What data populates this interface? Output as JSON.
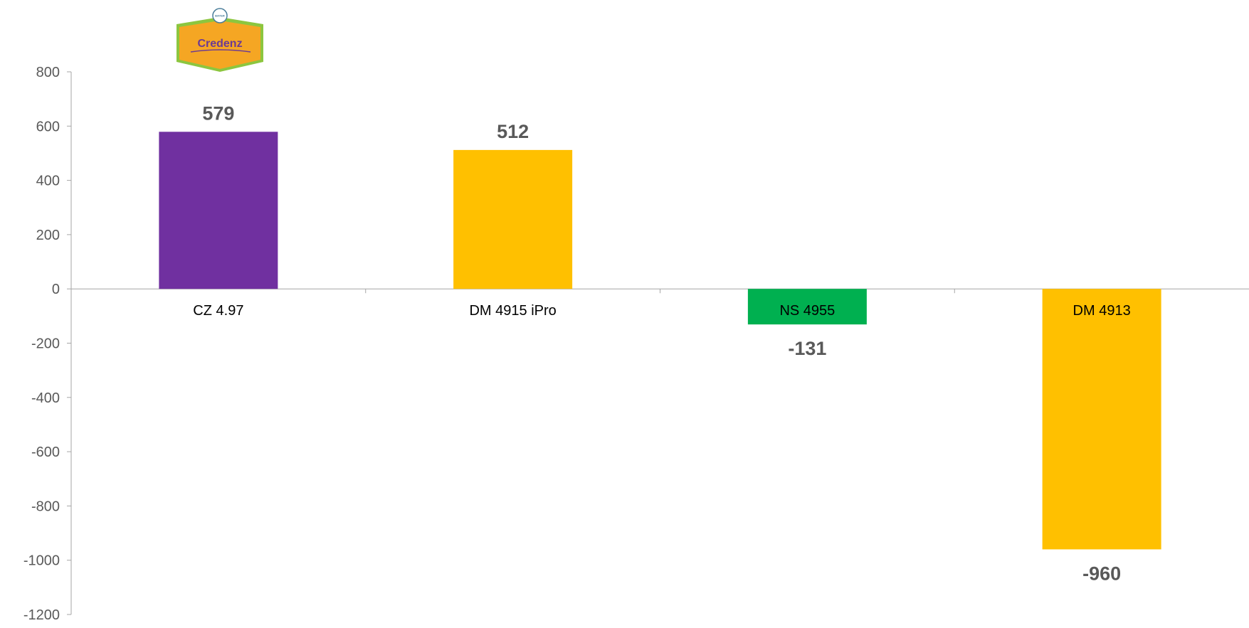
{
  "logo": {
    "brand": "Credenz",
    "company": "BAYER",
    "colors": {
      "body": "#f5a623",
      "border": "#8cc63f",
      "text": "#6b3a94",
      "seal": "#4a7d9a"
    }
  },
  "chart_data": {
    "type": "bar",
    "title": "",
    "xlabel": "",
    "ylabel": "",
    "categories": [
      "CZ 4.97",
      "DM 4915 iPro",
      "NS 4955",
      "DM 4913"
    ],
    "values": [
      579,
      512,
      -131,
      -960
    ],
    "data_labels": [
      "579",
      "512",
      "-131",
      "-960"
    ],
    "colors": [
      "#7030a0",
      "#ffc000",
      "#00b050",
      "#ffc000"
    ],
    "ylim": [
      -1200,
      800
    ],
    "yticks": [
      800,
      600,
      400,
      200,
      0,
      -200,
      -400,
      -600,
      -800,
      -1000,
      -1200
    ],
    "grid": false,
    "legend": "none"
  }
}
